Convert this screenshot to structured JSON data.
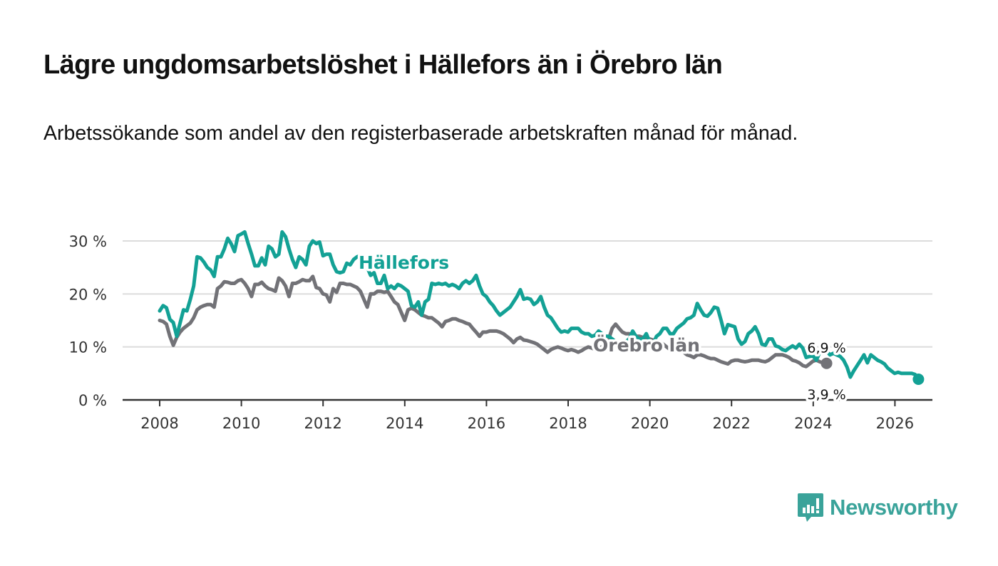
{
  "header": {
    "title": "Lägre ungdomsarbetslöshet i Hällefors än i Örebro län",
    "subtitle": "Arbetssökande som andel av den registerbaserade arbetskraften månad för månad."
  },
  "brand": {
    "name": "Newsworthy",
    "icon": "bar-chart-speech-bubble-icon",
    "color": "#3aa39a"
  },
  "chart_data": {
    "type": "line",
    "title": "Lägre ungdomsarbetslöshet i Hällefors än i Örebro län",
    "subtitle": "Arbetssökande som andel av den registerbaserade arbetskraften månad för månad.",
    "xlabel": "",
    "ylabel": "",
    "xlim": [
      2007.1,
      2026.8
    ],
    "ylim": [
      0,
      30
    ],
    "x_ticks": [
      2008,
      2010,
      2012,
      2014,
      2016,
      2018,
      2020,
      2022,
      2024,
      2026
    ],
    "x_tick_labels": [
      "2008",
      "2010",
      "2012",
      "2014",
      "2016",
      "2018",
      "2020",
      "2022",
      "2024",
      "2026"
    ],
    "y_ticks": [
      0,
      10,
      20,
      30
    ],
    "y_tick_labels": [
      "0 %",
      "10 %",
      "20 %",
      "30 %"
    ],
    "grid": true,
    "legend": "inline-labels",
    "series": [
      {
        "name": "Hällefors",
        "color": "#13a195",
        "end_label": "3,9 %",
        "x_start": 2008.0,
        "step": 0.0833,
        "values": [
          16.8,
          17.8,
          17.4,
          15.2,
          14.6,
          12.0,
          14.5,
          17.0,
          16.8,
          19.0,
          21.5,
          27.0,
          26.8,
          26.0,
          25.0,
          24.5,
          23.3,
          27.0,
          27.0,
          28.5,
          30.5,
          29.5,
          28.0,
          31.0,
          31.3,
          31.7,
          29.5,
          27.5,
          25.3,
          25.3,
          26.8,
          25.5,
          29.0,
          28.5,
          27.0,
          27.5,
          31.7,
          30.8,
          28.5,
          26.5,
          25.0,
          27.0,
          26.5,
          25.5,
          29.0,
          30.0,
          29.5,
          29.8,
          27.2,
          27.5,
          27.5,
          25.5,
          24.2,
          24.0,
          24.2,
          25.8,
          25.5,
          26.5,
          27.0,
          27.2,
          26.5,
          25.0,
          23.5,
          24.0,
          22.0,
          22.0,
          23.5,
          21.0,
          21.5,
          21.0,
          21.8,
          21.5,
          21.0,
          20.5,
          17.8,
          17.5,
          18.5,
          16.0,
          18.5,
          19.0,
          22.0,
          21.8,
          22.0,
          21.8,
          22.0,
          21.5,
          21.8,
          21.5,
          21.0,
          22.0,
          22.5,
          22.0,
          22.5,
          23.5,
          21.5,
          20.0,
          19.5,
          18.5,
          17.8,
          16.8,
          16.0,
          16.5,
          17.0,
          17.5,
          18.5,
          19.5,
          20.8,
          19.0,
          19.2,
          19.0,
          18.0,
          18.5,
          19.5,
          17.5,
          16.0,
          15.5,
          14.5,
          13.5,
          12.8,
          13.0,
          12.8,
          13.5,
          13.5,
          13.5,
          12.8,
          12.5,
          12.5,
          12.0,
          12.2,
          13.0,
          12.5,
          12.0,
          12.0,
          11.5,
          11.0,
          10.0,
          9.5,
          11.0,
          11.5,
          13.0,
          12.0,
          11.5,
          11.5,
          12.5,
          11.0,
          10.5,
          12.0,
          12.5,
          13.5,
          13.5,
          12.5,
          12.5,
          13.5,
          14.0,
          14.5,
          15.3,
          15.5,
          16.0,
          18.2,
          17.0,
          16.0,
          15.8,
          16.5,
          17.5,
          17.3,
          15.0,
          12.5,
          14.2,
          14.0,
          13.8,
          11.5,
          10.5,
          11.0,
          12.5,
          13.0,
          13.8,
          12.5,
          10.5,
          10.3,
          11.5,
          11.5,
          10.2,
          10.0,
          9.5,
          9.3,
          9.8,
          10.2,
          9.8,
          10.5,
          9.8,
          8.0,
          8.2,
          8.3,
          7.5,
          9.0,
          9.5,
          9.2,
          8.5,
          8.8,
          8.5,
          8.2,
          7.5,
          6.2,
          4.3,
          5.5,
          6.5,
          7.5,
          8.5,
          7.0,
          8.5,
          8.0,
          7.5,
          7.2,
          6.8,
          6.0,
          5.5,
          5.0,
          5.2,
          5.0,
          5.0,
          5.0,
          5.0,
          4.8,
          3.9
        ]
      },
      {
        "name": "Örebro län",
        "color": "#727277",
        "end_label": "6,9 %",
        "x_start": 2008.0,
        "step": 0.0833,
        "values": [
          15.0,
          14.8,
          14.3,
          12.0,
          10.3,
          11.8,
          12.8,
          13.5,
          14.0,
          14.5,
          15.5,
          17.0,
          17.5,
          17.8,
          18.0,
          18.0,
          17.5,
          21.0,
          21.5,
          22.3,
          22.2,
          22.0,
          22.0,
          22.5,
          22.7,
          22.0,
          21.0,
          19.5,
          21.8,
          21.8,
          22.2,
          21.5,
          21.0,
          20.8,
          20.5,
          23.0,
          22.5,
          21.5,
          19.5,
          22.0,
          22.0,
          22.3,
          22.7,
          22.5,
          22.5,
          23.3,
          21.2,
          21.0,
          20.0,
          19.8,
          18.5,
          21.0,
          20.3,
          22.0,
          22.0,
          21.8,
          21.8,
          21.5,
          21.2,
          20.5,
          19.0,
          17.5,
          20.0,
          20.0,
          20.5,
          20.5,
          20.3,
          20.5,
          19.5,
          18.5,
          18.0,
          16.5,
          15.0,
          17.0,
          17.3,
          17.0,
          16.5,
          16.0,
          15.8,
          15.5,
          15.5,
          15.0,
          14.5,
          13.8,
          14.8,
          15.0,
          15.3,
          15.3,
          15.0,
          14.8,
          14.5,
          14.3,
          13.5,
          12.8,
          12.0,
          12.8,
          12.8,
          13.0,
          13.0,
          13.0,
          12.8,
          12.5,
          12.0,
          11.5,
          10.8,
          11.5,
          11.8,
          11.3,
          11.2,
          11.0,
          10.8,
          10.5,
          10.0,
          9.5,
          9.0,
          9.5,
          9.8,
          10.0,
          9.8,
          9.5,
          9.3,
          9.5,
          9.3,
          9.0,
          9.3,
          9.7,
          10.0,
          9.8,
          9.5,
          9.8,
          10.0,
          10.5,
          11.5,
          13.5,
          14.3,
          13.5,
          12.8,
          12.5,
          12.5,
          12.3,
          12.0,
          12.0,
          11.8,
          11.5,
          11.5,
          11.3,
          11.0,
          11.0,
          10.5,
          10.0,
          9.5,
          9.2,
          9.5,
          9.8,
          9.0,
          8.5,
          8.3,
          8.0,
          8.5,
          8.5,
          8.3,
          8.0,
          7.8,
          7.8,
          7.5,
          7.2,
          7.0,
          6.8,
          7.3,
          7.5,
          7.5,
          7.3,
          7.2,
          7.3,
          7.5,
          7.5,
          7.5,
          7.3,
          7.2,
          7.5,
          8.0,
          8.5,
          8.5,
          8.5,
          8.3,
          8.0,
          7.5,
          7.3,
          7.0,
          6.5,
          6.3,
          6.8,
          7.3,
          7.5,
          7.2,
          7.0,
          6.9
        ]
      }
    ],
    "annotations": [
      {
        "text": "Hällefors",
        "series": "Hällefors",
        "position": "above line near 2013"
      },
      {
        "text": "Örebro län",
        "series": "Örebro län",
        "position": "on line near 2019.5"
      },
      {
        "text": "6,9 %",
        "series": "Örebro län",
        "position": "end"
      },
      {
        "text": "3,9 %",
        "series": "Hällefors",
        "position": "end"
      }
    ]
  }
}
